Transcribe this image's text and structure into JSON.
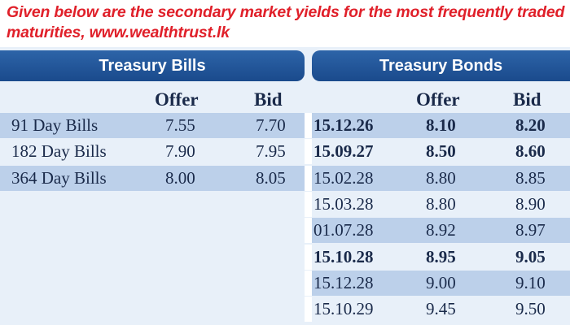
{
  "intro": "Given below are the secondary market yields for the most frequently traded maturities, www.wealthtrust.lk",
  "bills": {
    "title": "Treasury Bills",
    "headers": {
      "offer": "Offer",
      "bid": "Bid"
    },
    "rows": [
      {
        "name": "91 Day Bills",
        "offer": "7.55",
        "bid": "7.70"
      },
      {
        "name": "182 Day Bills",
        "offer": "7.90",
        "bid": "7.95"
      },
      {
        "name": "364 Day Bills",
        "offer": "8.00",
        "bid": "8.05"
      }
    ]
  },
  "bonds": {
    "title": "Treasury Bonds",
    "headers": {
      "offer": "Offer",
      "bid": "Bid"
    },
    "rows": [
      {
        "maturity": "15.12.26",
        "offer": "8.10",
        "bid": "8.20",
        "bold": true
      },
      {
        "maturity": "15.09.27",
        "offer": "8.50",
        "bid": "8.60",
        "bold": true
      },
      {
        "maturity": "15.02.28",
        "offer": "8.80",
        "bid": "8.85",
        "bold": false
      },
      {
        "maturity": "15.03.28",
        "offer": "8.80",
        "bid": "8.90",
        "bold": false
      },
      {
        "maturity": "01.07.28",
        "offer": "8.92",
        "bid": "8.97",
        "bold": false
      },
      {
        "maturity": "15.10.28",
        "offer": "8.95",
        "bid": "9.05",
        "bold": true
      },
      {
        "maturity": "15.12.28",
        "offer": "9.00",
        "bid": "9.10",
        "bold": false
      },
      {
        "maturity": "15.10.29",
        "offer": "9.45",
        "bid": "9.50",
        "bold": false
      }
    ]
  }
}
